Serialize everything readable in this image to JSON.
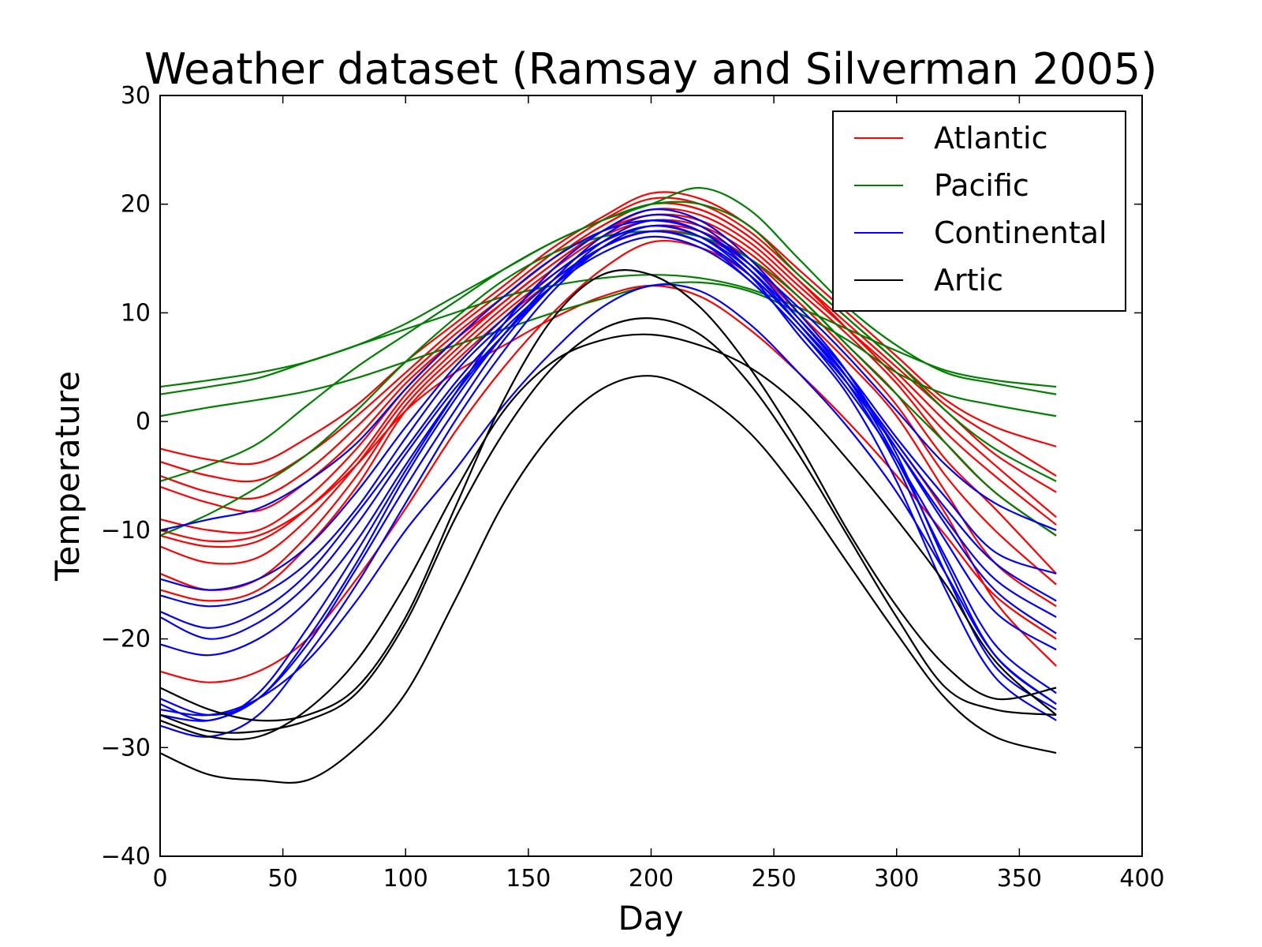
{
  "chart_data": {
    "type": "line",
    "title": "Weather dataset (Ramsay and Silverman 2005)",
    "xlabel": "Day",
    "ylabel": "Temperature",
    "xlim": [
      0,
      400
    ],
    "ylim": [
      -40,
      30
    ],
    "xticks": [
      0,
      50,
      100,
      150,
      200,
      250,
      300,
      350,
      400
    ],
    "yticks": [
      -40,
      -30,
      -20,
      -10,
      0,
      10,
      20,
      30
    ],
    "xtick_labels": [
      "0",
      "50",
      "100",
      "150",
      "200",
      "250",
      "300",
      "350",
      "400"
    ],
    "ytick_labels": [
      "−40",
      "−30",
      "−20",
      "−10",
      "0",
      "10",
      "20",
      "30"
    ],
    "grid": false,
    "legend": {
      "placement": "top-right",
      "entries": [
        {
          "label": "Atlantic",
          "color": "#ff0000"
        },
        {
          "label": "Pacific",
          "color": "#008000"
        },
        {
          "label": "Continental",
          "color": "#0000ff"
        },
        {
          "label": "Artic",
          "color": "#000000"
        }
      ]
    },
    "x": [
      0,
      20,
      40,
      60,
      80,
      100,
      120,
      140,
      160,
      180,
      200,
      220,
      240,
      260,
      280,
      300,
      320,
      340,
      365
    ],
    "groups": [
      {
        "name": "Atlantic",
        "color": "#ff0000",
        "curves": [
          [
            -2.5,
            -3.5,
            -3.8,
            -1.5,
            1.5,
            5.5,
            9.0,
            12.5,
            16.0,
            18.8,
            21.0,
            20.5,
            18.0,
            14.0,
            10.0,
            6.0,
            2.0,
            -0.5,
            -2.3
          ],
          [
            -3.7,
            -5.0,
            -5.4,
            -3.0,
            0.5,
            4.5,
            8.5,
            12.0,
            15.5,
            18.5,
            20.5,
            20.0,
            17.5,
            13.5,
            9.5,
            5.5,
            1.5,
            -1.5,
            -5.0
          ],
          [
            -5.0,
            -6.5,
            -7.0,
            -4.5,
            -0.5,
            4.0,
            8.0,
            11.5,
            15.0,
            18.0,
            20.0,
            19.5,
            17.0,
            13.0,
            9.0,
            5.0,
            1.0,
            -3.0,
            -6.5
          ],
          [
            -6.0,
            -7.5,
            -8.2,
            -5.5,
            -1.5,
            3.5,
            7.5,
            11.0,
            14.5,
            17.5,
            19.5,
            19.0,
            16.5,
            12.5,
            8.5,
            4.5,
            0.0,
            -4.0,
            -8.8
          ],
          [
            -9.0,
            -10.0,
            -10.0,
            -7.0,
            -2.5,
            3.0,
            7.5,
            11.5,
            15.0,
            18.0,
            20.0,
            19.5,
            17.0,
            13.0,
            8.5,
            4.0,
            -1.0,
            -5.0,
            -9.5
          ],
          [
            -10.5,
            -11.5,
            -11.0,
            -8.0,
            -3.5,
            2.5,
            7.0,
            11.0,
            14.5,
            17.5,
            19.0,
            18.5,
            16.0,
            12.0,
            8.0,
            3.5,
            -2.0,
            -6.5,
            -10.5
          ],
          [
            -11.5,
            -13.0,
            -12.5,
            -9.0,
            -4.0,
            2.0,
            6.5,
            10.5,
            14.0,
            17.0,
            18.5,
            18.0,
            15.5,
            11.5,
            7.0,
            2.5,
            -3.5,
            -8.0,
            -14.0
          ],
          [
            -14.0,
            -15.5,
            -14.5,
            -10.5,
            -5.0,
            1.5,
            6.0,
            10.0,
            13.5,
            16.5,
            18.0,
            17.5,
            15.0,
            11.0,
            6.5,
            1.5,
            -5.0,
            -10.0,
            -15.0
          ],
          [
            -15.5,
            -16.5,
            -15.5,
            -11.5,
            -6.0,
            1.0,
            5.5,
            9.5,
            13.0,
            16.0,
            17.5,
            17.0,
            14.5,
            10.0,
            5.5,
            0.5,
            -6.5,
            -13.0,
            -17.0
          ],
          [
            -23.0,
            -24.0,
            -23.0,
            -20.0,
            -14.5,
            -8.0,
            -1.0,
            5.0,
            10.0,
            14.0,
            16.5,
            16.0,
            13.5,
            9.0,
            4.0,
            -2.0,
            -8.5,
            -16.5,
            -22.5
          ],
          [
            -10.0,
            -11.0,
            -10.5,
            -8.0,
            -4.0,
            1.0,
            4.5,
            7.0,
            9.5,
            11.5,
            12.5,
            11.5,
            8.5,
            4.5,
            0.0,
            -5.0,
            -10.5,
            -16.0,
            -20.0
          ]
        ]
      },
      {
        "name": "Pacific",
        "color": "#008000",
        "curves": [
          [
            3.2,
            3.8,
            4.5,
            5.5,
            7.0,
            8.5,
            10.0,
            11.5,
            12.5,
            13.2,
            13.5,
            13.2,
            12.2,
            10.5,
            8.5,
            6.5,
            4.7,
            3.8,
            3.2
          ],
          [
            2.5,
            3.2,
            4.0,
            5.5,
            7.0,
            9.0,
            11.5,
            14.0,
            16.5,
            18.5,
            20.0,
            21.5,
            19.5,
            15.0,
            10.5,
            7.0,
            4.5,
            3.5,
            2.5
          ],
          [
            0.5,
            1.3,
            2.0,
            2.8,
            4.0,
            5.5,
            7.0,
            8.5,
            10.0,
            11.3,
            12.5,
            12.8,
            12.0,
            10.0,
            7.5,
            4.5,
            2.5,
            1.5,
            0.5
          ],
          [
            -5.5,
            -4.0,
            -2.0,
            1.5,
            5.0,
            8.0,
            11.0,
            14.0,
            16.5,
            18.5,
            20.0,
            20.0,
            18.0,
            13.5,
            9.5,
            5.5,
            1.0,
            -2.5,
            -5.5
          ],
          [
            -10.5,
            -8.5,
            -6.0,
            -3.0,
            1.0,
            5.5,
            9.5,
            13.0,
            15.5,
            17.0,
            17.5,
            17.0,
            15.0,
            11.5,
            7.0,
            2.5,
            -2.0,
            -6.5,
            -10.5
          ]
        ]
      },
      {
        "name": "Continental",
        "color": "#0000ff",
        "curves": [
          [
            -10.0,
            -9.0,
            -8.0,
            -5.5,
            -2.0,
            3.0,
            7.5,
            11.5,
            15.0,
            17.5,
            18.5,
            17.5,
            14.5,
            10.5,
            6.0,
            1.0,
            -4.0,
            -7.5,
            -10.0
          ],
          [
            -14.5,
            -15.5,
            -14.5,
            -11.5,
            -6.5,
            -0.5,
            5.0,
            9.5,
            13.5,
            16.5,
            18.0,
            17.0,
            14.0,
            9.5,
            4.5,
            -1.5,
            -7.0,
            -12.0,
            -14.0
          ],
          [
            -16.0,
            -17.0,
            -16.0,
            -13.0,
            -8.0,
            -1.5,
            4.5,
            9.0,
            13.0,
            16.0,
            17.5,
            16.5,
            13.5,
            9.0,
            4.0,
            -2.0,
            -8.0,
            -13.0,
            -16.5
          ],
          [
            -17.5,
            -19.0,
            -17.5,
            -14.0,
            -8.5,
            -2.5,
            3.5,
            8.5,
            12.5,
            15.5,
            17.0,
            16.0,
            13.0,
            8.5,
            3.5,
            -2.5,
            -9.0,
            -14.5,
            -18.0
          ],
          [
            -18.0,
            -20.0,
            -18.5,
            -15.0,
            -9.5,
            -3.0,
            3.0,
            8.0,
            12.5,
            16.0,
            17.5,
            16.5,
            13.5,
            9.0,
            4.0,
            -2.5,
            -9.5,
            -15.5,
            -19.5
          ],
          [
            -20.5,
            -21.5,
            -20.0,
            -16.5,
            -11.0,
            -4.0,
            2.5,
            8.0,
            12.5,
            16.0,
            17.5,
            16.5,
            13.0,
            8.5,
            3.0,
            -3.5,
            -11.0,
            -17.5,
            -21.0
          ],
          [
            -25.5,
            -27.0,
            -25.5,
            -20.0,
            -13.0,
            -5.0,
            2.0,
            8.0,
            13.0,
            17.0,
            19.0,
            18.0,
            14.5,
            9.5,
            4.0,
            -3.5,
            -12.5,
            -20.5,
            -25.0
          ],
          [
            -26.0,
            -27.5,
            -25.0,
            -19.0,
            -12.0,
            -4.5,
            2.5,
            9.0,
            14.0,
            17.5,
            19.5,
            18.5,
            15.0,
            10.0,
            4.5,
            -3.0,
            -13.0,
            -21.5,
            -26.0
          ],
          [
            -27.0,
            -27.5,
            -25.5,
            -20.5,
            -13.5,
            -6.0,
            1.0,
            7.5,
            12.5,
            16.5,
            18.5,
            17.5,
            14.0,
            9.0,
            3.5,
            -4.0,
            -14.0,
            -22.5,
            -26.5
          ],
          [
            -28.0,
            -29.0,
            -27.0,
            -21.5,
            -15.0,
            -7.5,
            0.0,
            6.5,
            12.0,
            16.0,
            18.0,
            17.0,
            13.5,
            8.0,
            2.5,
            -5.5,
            -15.5,
            -23.5,
            -27.5
          ],
          [
            -26.5,
            -27.0,
            -25.5,
            -22.0,
            -16.5,
            -10.0,
            -4.5,
            1.5,
            6.5,
            10.5,
            12.5,
            12.0,
            9.0,
            4.5,
            -0.5,
            -6.5,
            -14.0,
            -21.5,
            -26.0
          ]
        ]
      },
      {
        "name": "Artic",
        "color": "#000000",
        "curves": [
          [
            -24.5,
            -26.5,
            -27.5,
            -27.0,
            -24.5,
            -18.0,
            -8.0,
            2.0,
            9.5,
            13.5,
            13.5,
            10.5,
            5.0,
            -2.0,
            -10.0,
            -17.0,
            -22.5,
            -25.5,
            -24.5
          ],
          [
            -27.0,
            -28.5,
            -28.5,
            -27.5,
            -25.0,
            -18.5,
            -9.0,
            -1.0,
            5.0,
            8.5,
            9.5,
            8.0,
            3.5,
            -3.0,
            -10.5,
            -18.0,
            -24.5,
            -26.5,
            -27.0
          ],
          [
            -27.5,
            -29.0,
            -29.0,
            -26.5,
            -22.0,
            -15.0,
            -6.5,
            1.0,
            5.5,
            7.5,
            8.0,
            7.0,
            5.0,
            1.5,
            -3.5,
            -9.0,
            -15.0,
            -22.0,
            -27.0
          ],
          [
            -30.5,
            -32.5,
            -33.0,
            -33.0,
            -30.0,
            -25.0,
            -16.5,
            -7.5,
            -1.0,
            3.0,
            4.2,
            2.5,
            -1.0,
            -6.5,
            -13.0,
            -19.5,
            -25.5,
            -29.0,
            -30.5
          ]
        ]
      }
    ]
  }
}
